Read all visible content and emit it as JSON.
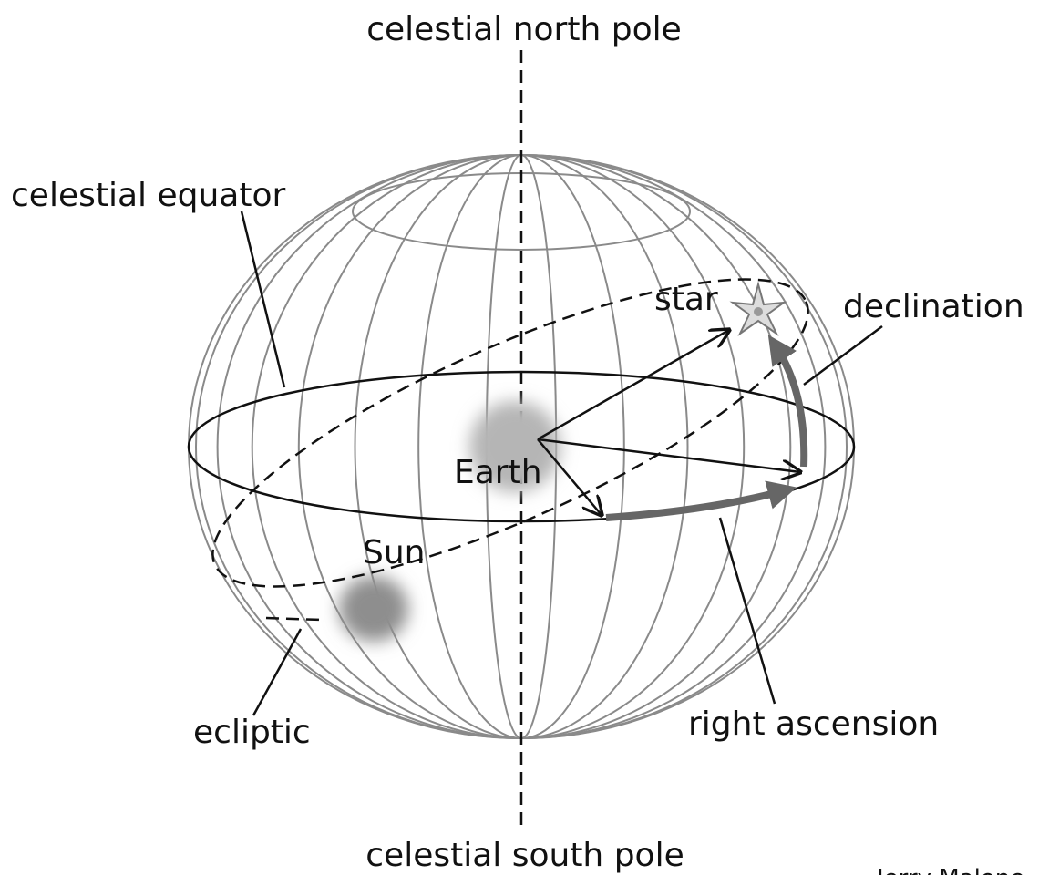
{
  "labels": {
    "north_pole": "celestial north pole",
    "equator": "celestial equator",
    "star": "star",
    "declination": "declination",
    "earth": "Earth",
    "sun": "Sun",
    "ecliptic": "ecliptic",
    "right_ascension": "right ascension",
    "south_pole": "celestial south pole",
    "credit": "Jerry Malone"
  }
}
